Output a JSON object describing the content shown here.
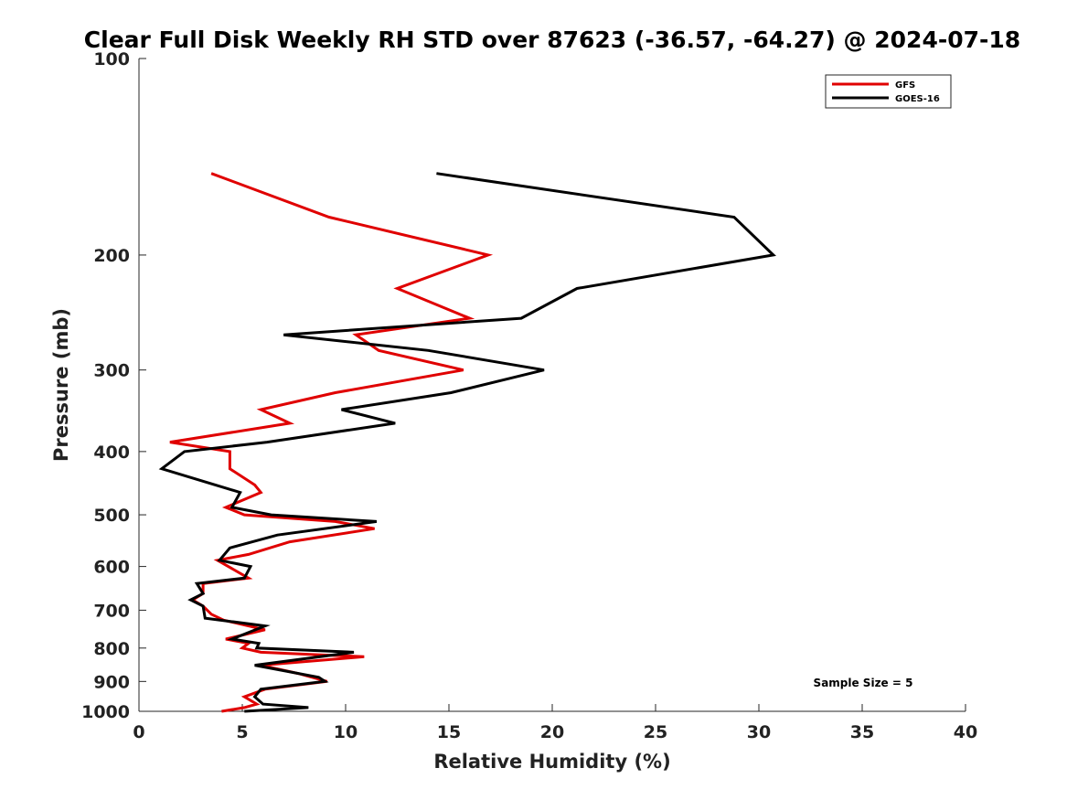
{
  "chart_data": {
    "type": "line",
    "title": "Clear Full Disk Weekly RH STD over 87623 (-36.57, -64.27) @ 2024-07-18",
    "xlabel": "Relative Humidity (%)",
    "ylabel": "Pressure (mb)",
    "xlim": [
      0,
      40
    ],
    "ylim": [
      100,
      1000
    ],
    "y_scale": "log",
    "y_reversed": true,
    "x_ticks": [
      0,
      5,
      10,
      15,
      20,
      25,
      30,
      35,
      40
    ],
    "y_ticks": [
      100,
      200,
      300,
      400,
      500,
      600,
      700,
      800,
      900,
      1000
    ],
    "grid": false,
    "legend_position": "top-right",
    "annotation": "Sample Size = 5",
    "series": [
      {
        "name": "GFS",
        "color": "#e00000",
        "points": [
          [
            3.5,
            150
          ],
          [
            9.2,
            175
          ],
          [
            16.9,
            200
          ],
          [
            12.5,
            225
          ],
          [
            16.0,
            250
          ],
          [
            10.5,
            265
          ],
          [
            11.6,
            280
          ],
          [
            15.7,
            300
          ],
          [
            9.5,
            325
          ],
          [
            5.9,
            345
          ],
          [
            7.3,
            362
          ],
          [
            1.5,
            387
          ],
          [
            4.4,
            400
          ],
          [
            4.4,
            425
          ],
          [
            5.6,
            450
          ],
          [
            5.9,
            462
          ],
          [
            4.2,
            487
          ],
          [
            5.1,
            500
          ],
          [
            9.5,
            512
          ],
          [
            11.4,
            525
          ],
          [
            7.3,
            550
          ],
          [
            5.3,
            575
          ],
          [
            3.8,
            587
          ],
          [
            5.3,
            625
          ],
          [
            3.1,
            637
          ],
          [
            3.1,
            660
          ],
          [
            2.6,
            675
          ],
          [
            3.1,
            690
          ],
          [
            3.5,
            710
          ],
          [
            4.1,
            725
          ],
          [
            6.1,
            750
          ],
          [
            4.2,
            775
          ],
          [
            5.3,
            787
          ],
          [
            5.0,
            800
          ],
          [
            5.9,
            812
          ],
          [
            10.9,
            825
          ],
          [
            5.9,
            850
          ],
          [
            7.7,
            875
          ],
          [
            9.1,
            900
          ],
          [
            6.1,
            925
          ],
          [
            5.1,
            950
          ],
          [
            5.7,
            975
          ],
          [
            5.1,
            987
          ],
          [
            4.0,
            1000
          ]
        ]
      },
      {
        "name": "GOES-16",
        "color": "#000000",
        "points": [
          [
            14.4,
            150
          ],
          [
            28.8,
            175
          ],
          [
            30.7,
            200
          ],
          [
            21.2,
            225
          ],
          [
            18.5,
            250
          ],
          [
            7.0,
            265
          ],
          [
            14.0,
            280
          ],
          [
            19.6,
            300
          ],
          [
            15.1,
            325
          ],
          [
            9.8,
            345
          ],
          [
            12.4,
            362
          ],
          [
            6.2,
            387
          ],
          [
            2.2,
            400
          ],
          [
            1.1,
            425
          ],
          [
            3.7,
            450
          ],
          [
            4.9,
            462
          ],
          [
            4.5,
            487
          ],
          [
            6.4,
            500
          ],
          [
            11.5,
            512
          ],
          [
            6.7,
            537
          ],
          [
            4.4,
            562
          ],
          [
            3.9,
            587
          ],
          [
            5.4,
            600
          ],
          [
            5.1,
            625
          ],
          [
            2.8,
            637
          ],
          [
            3.1,
            660
          ],
          [
            2.5,
            675
          ],
          [
            3.1,
            690
          ],
          [
            3.2,
            720
          ],
          [
            6.1,
            740
          ],
          [
            4.5,
            775
          ],
          [
            5.8,
            787
          ],
          [
            5.7,
            800
          ],
          [
            10.4,
            812
          ],
          [
            5.6,
            850
          ],
          [
            8.7,
            887
          ],
          [
            9.0,
            900
          ],
          [
            5.9,
            925
          ],
          [
            5.6,
            950
          ],
          [
            6.0,
            975
          ],
          [
            8.2,
            987
          ],
          [
            5.1,
            1000
          ]
        ]
      }
    ]
  }
}
